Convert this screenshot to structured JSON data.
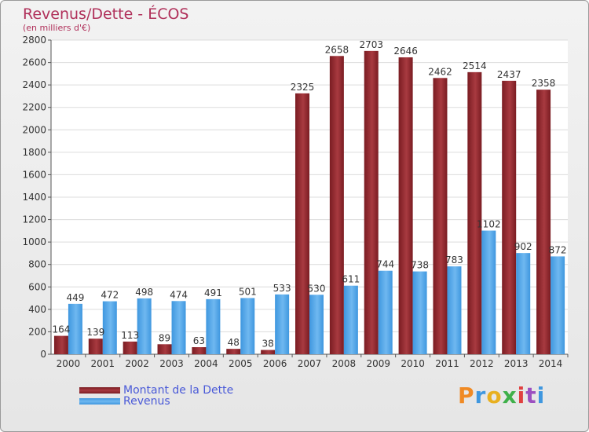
{
  "chart_data": {
    "type": "bar",
    "title": "Revenus/Dette - ÉCOS",
    "subtitle": "(en milliers d'€)",
    "categories": [
      "2000",
      "2001",
      "2002",
      "2003",
      "2004",
      "2005",
      "2006",
      "2007",
      "2008",
      "2009",
      "2010",
      "2011",
      "2012",
      "2013",
      "2014"
    ],
    "series": [
      {
        "name": "Montant de la Dette",
        "color": "#7a1c22",
        "values": [
          164,
          139,
          113,
          89,
          63,
          48,
          38,
          2325,
          2658,
          2703,
          2646,
          2462,
          2514,
          2437,
          2358
        ]
      },
      {
        "name": "Revenus",
        "color": "#3f97df",
        "values": [
          449,
          472,
          498,
          474,
          491,
          501,
          533,
          530,
          611,
          744,
          738,
          783,
          1102,
          902,
          872
        ]
      }
    ],
    "ylim": [
      0,
      2800
    ],
    "yticks": [
      0,
      200,
      400,
      600,
      800,
      1000,
      1200,
      1400,
      1600,
      1800,
      2000,
      2200,
      2400,
      2600,
      2800
    ],
    "grid": true,
    "legend_position": "bottom-left"
  },
  "brand": {
    "text": "Proxiti",
    "colors": [
      "#f08a24",
      "#3f97df",
      "#e8b020",
      "#3fb04a",
      "#e04040",
      "#9c4fc0",
      "#3f97df"
    ]
  }
}
